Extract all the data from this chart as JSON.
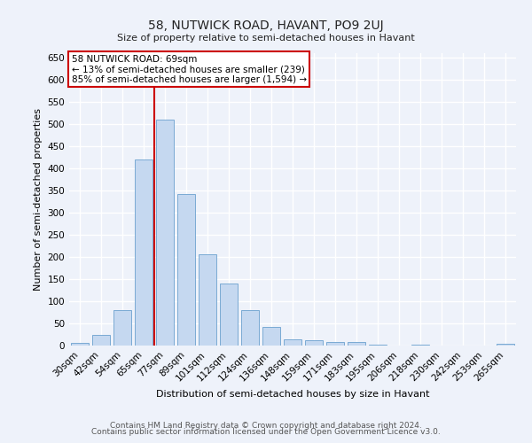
{
  "title": "58, NUTWICK ROAD, HAVANT, PO9 2UJ",
  "subtitle": "Size of property relative to semi-detached houses in Havant",
  "xlabel": "Distribution of semi-detached houses by size in Havant",
  "ylabel": "Number of semi-detached properties",
  "property_label": "58 NUTWICK ROAD: 69sqm",
  "annotation_line1": "← 13% of semi-detached houses are smaller (239)",
  "annotation_line2": "85% of semi-detached houses are larger (1,594) →",
  "categories": [
    "30sqm",
    "42sqm",
    "54sqm",
    "65sqm",
    "77sqm",
    "89sqm",
    "101sqm",
    "112sqm",
    "124sqm",
    "136sqm",
    "148sqm",
    "159sqm",
    "171sqm",
    "183sqm",
    "195sqm",
    "206sqm",
    "218sqm",
    "230sqm",
    "242sqm",
    "253sqm",
    "265sqm"
  ],
  "values": [
    6,
    25,
    80,
    420,
    510,
    343,
    207,
    140,
    80,
    42,
    14,
    13,
    9,
    8,
    2,
    1,
    2,
    1,
    1,
    1,
    4
  ],
  "bar_color": "#c5d8f0",
  "bar_edge_color": "#7aaad4",
  "vline_color": "#cc0000",
  "vline_x_index": 3.5,
  "annotation_box_facecolor": "#ffffff",
  "annotation_box_edgecolor": "#cc0000",
  "bg_color": "#eef2fa",
  "grid_color": "#ffffff",
  "footer_line1": "Contains HM Land Registry data © Crown copyright and database right 2024.",
  "footer_line2": "Contains public sector information licensed under the Open Government Licence v3.0.",
  "ylim": [
    0,
    660
  ],
  "yticks": [
    0,
    50,
    100,
    150,
    200,
    250,
    300,
    350,
    400,
    450,
    500,
    550,
    600,
    650
  ],
  "title_fontsize": 10,
  "subtitle_fontsize": 8,
  "ylabel_fontsize": 8,
  "xlabel_fontsize": 8,
  "tick_fontsize": 7.5,
  "footer_fontsize": 6.5
}
